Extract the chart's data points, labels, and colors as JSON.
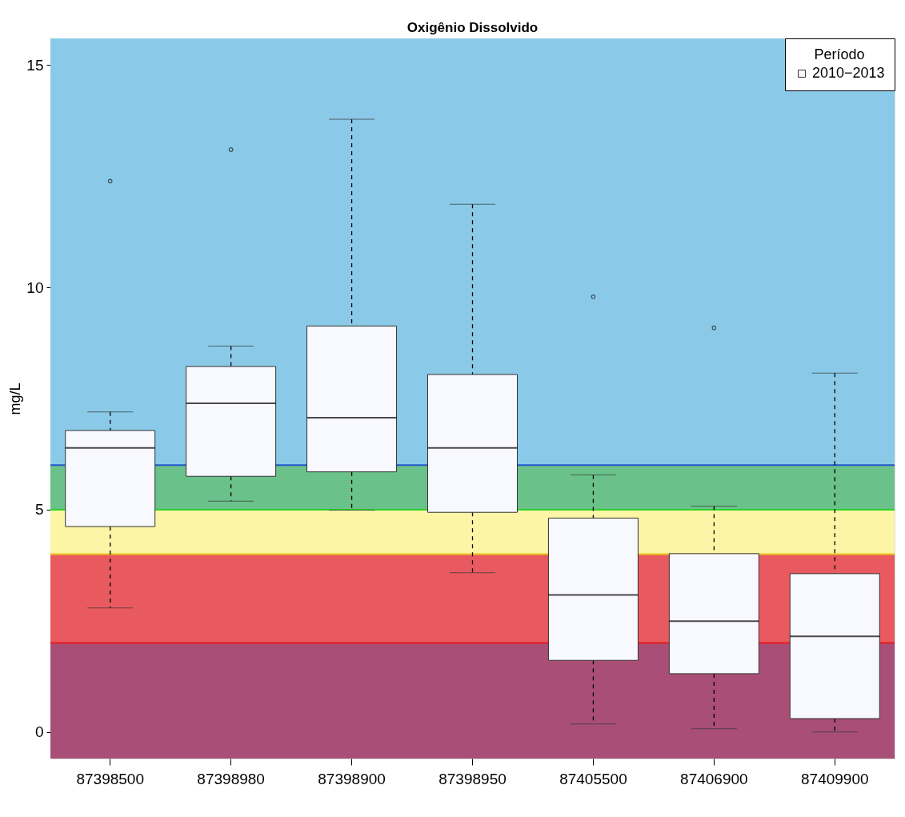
{
  "chart_data": {
    "type": "box",
    "title": "Oxigênio Dissolvido",
    "ylabel": "mg/L",
    "legend_title": "Período",
    "categories": [
      "87398500",
      "87398980",
      "87398900",
      "87398950",
      "87405500",
      "87406900",
      "87409900"
    ],
    "series": [
      {
        "name": "2010−2013",
        "color": "#f8f8ff",
        "boxes": [
          {
            "low": 2.79,
            "q1": 4.62,
            "median": 6.39,
            "q3": 6.78,
            "high": 7.2,
            "outliers": [
              12.39
            ]
          },
          {
            "low": 5.19,
            "q1": 5.75,
            "median": 7.39,
            "q3": 8.22,
            "high": 8.68,
            "outliers": [
              13.1
            ]
          },
          {
            "low": 4.99,
            "q1": 5.85,
            "median": 7.07,
            "q3": 9.13,
            "high": 13.78
          },
          {
            "low": 3.58,
            "q1": 4.94,
            "median": 6.39,
            "q3": 8.04,
            "high": 11.87
          },
          {
            "low": 0.18,
            "q1": 1.61,
            "median": 3.08,
            "q3": 4.81,
            "high": 5.78,
            "outliers": [
              9.79
            ]
          },
          {
            "low": 0.07,
            "q1": 1.31,
            "median": 2.49,
            "q3": 4.01,
            "high": 5.08,
            "outliers": [
              9.09
            ]
          },
          {
            "low": 0.0,
            "q1": 0.3,
            "median": 2.15,
            "q3": 3.56,
            "high": 8.07
          }
        ]
      }
    ],
    "ylim": [
      -0.6,
      15.6
    ],
    "yticks": [
      0,
      5,
      10,
      15
    ],
    "legend": "top right",
    "bands": [
      {
        "axis": "y",
        "from": -0.6,
        "to": 2,
        "color": "#a94f77"
      },
      {
        "axis": "y",
        "from": 2,
        "to": 4,
        "color": "#e85a60"
      },
      {
        "axis": "y",
        "from": 4,
        "to": 5,
        "color": "#fcf5a5"
      },
      {
        "axis": "y",
        "from": 5,
        "to": 6,
        "color": "#6ac28a"
      },
      {
        "axis": "y",
        "from": 6,
        "to": 15.6,
        "color": "#8acae8"
      }
    ],
    "ref_lines": [
      {
        "axis": "y",
        "value": 2,
        "color": "#e41a1c"
      },
      {
        "axis": "y",
        "value": 4,
        "color": "#e8c81a"
      },
      {
        "axis": "y",
        "value": 5,
        "color": "#2bd12b"
      },
      {
        "axis": "y",
        "value": 6,
        "color": "#2255cc"
      }
    ]
  }
}
